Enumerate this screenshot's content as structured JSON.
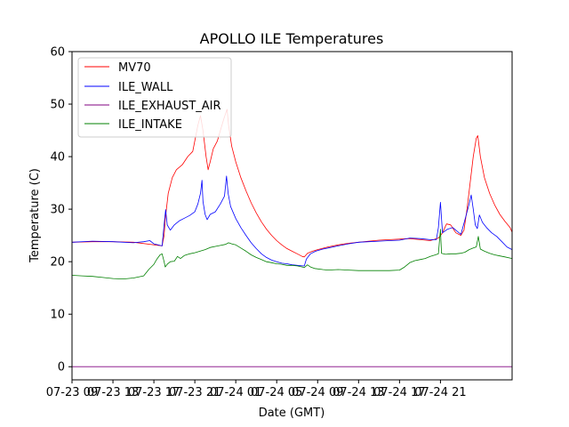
{
  "chart_data": {
    "type": "line",
    "title": "APOLLO ILE Temperatures",
    "xlabel": "Date (GMT)",
    "ylabel": "Temperature (C)",
    "xlim": [
      0,
      43
    ],
    "ylim": [
      -2.5,
      60
    ],
    "x_unit": "hours since 07-23 09:00 GMT (approx.)",
    "x_ticks": [
      {
        "x": 0,
        "label": "07-23 09"
      },
      {
        "x": 4,
        "label": "07-23 13"
      },
      {
        "x": 8,
        "label": "07-23 17"
      },
      {
        "x": 12,
        "label": "07-23 21"
      },
      {
        "x": 16,
        "label": "07-24 01"
      },
      {
        "x": 20,
        "label": "07-24 05"
      },
      {
        "x": 24,
        "label": "07-24 09"
      },
      {
        "x": 28,
        "label": "07-24 13"
      },
      {
        "x": 32,
        "label": "07-24 17"
      },
      {
        "x": 36,
        "label": "07-24 21"
      }
    ],
    "y_ticks": [
      0,
      10,
      20,
      30,
      40,
      50,
      60
    ],
    "legend_position": "top-left",
    "series": [
      {
        "name": "MV70",
        "color": "#ff0000",
        "points": [
          [
            0,
            23.7
          ],
          [
            2,
            23.8
          ],
          [
            4,
            23.8
          ],
          [
            6,
            23.7
          ],
          [
            8.8,
            23.0
          ],
          [
            9,
            25.0
          ],
          [
            9.1,
            28.0
          ],
          [
            9.4,
            33.0
          ],
          [
            9.8,
            36.0
          ],
          [
            10.2,
            37.5
          ],
          [
            10.8,
            38.5
          ],
          [
            11.3,
            40.0
          ],
          [
            11.8,
            41.0
          ],
          [
            12.0,
            43.0
          ],
          [
            12.3,
            46.0
          ],
          [
            12.55,
            47.8
          ],
          [
            12.8,
            45.0
          ],
          [
            13.1,
            40.0
          ],
          [
            13.3,
            37.5
          ],
          [
            13.5,
            39.0
          ],
          [
            13.8,
            41.5
          ],
          [
            14.2,
            43.0
          ],
          [
            14.5,
            45.0
          ],
          [
            14.8,
            47.0
          ],
          [
            15.05,
            48.5
          ],
          [
            15.15,
            49.0
          ],
          [
            15.3,
            46.0
          ],
          [
            15.6,
            42.0
          ],
          [
            16.0,
            39.0
          ],
          [
            16.5,
            36.0
          ],
          [
            17.0,
            33.5
          ],
          [
            17.5,
            31.2
          ],
          [
            18.0,
            29.3
          ],
          [
            18.5,
            27.6
          ],
          [
            19.0,
            26.2
          ],
          [
            19.5,
            25.0
          ],
          [
            20.0,
            24.0
          ],
          [
            20.5,
            23.2
          ],
          [
            21.0,
            22.5
          ],
          [
            21.5,
            22.0
          ],
          [
            22.0,
            21.5
          ],
          [
            22.5,
            21.0
          ],
          [
            22.7,
            20.9
          ],
          [
            23.0,
            21.6
          ],
          [
            23.5,
            22.0
          ],
          [
            24.0,
            22.3
          ],
          [
            25.0,
            22.8
          ],
          [
            26.0,
            23.2
          ],
          [
            27.0,
            23.5
          ],
          [
            28.0,
            23.7
          ],
          [
            29.0,
            23.9
          ],
          [
            30.0,
            24.1
          ],
          [
            31.0,
            24.2
          ],
          [
            32.0,
            24.3
          ],
          [
            33.0,
            24.4
          ],
          [
            34.0,
            24.2
          ],
          [
            35.0,
            24.0
          ],
          [
            35.8,
            24.5
          ],
          [
            36.2,
            25.5
          ],
          [
            36.6,
            27.2
          ],
          [
            37.0,
            27.0
          ],
          [
            37.5,
            25.5
          ],
          [
            38.0,
            25.0
          ],
          [
            38.3,
            26.0
          ],
          [
            38.6,
            30.0
          ],
          [
            38.9,
            35.0
          ],
          [
            39.2,
            40.0
          ],
          [
            39.5,
            43.5
          ],
          [
            39.65,
            44.0
          ],
          [
            39.9,
            40.0
          ],
          [
            40.3,
            36.0
          ],
          [
            40.8,
            33.0
          ],
          [
            41.3,
            30.8
          ],
          [
            41.8,
            29.0
          ],
          [
            42.3,
            27.7
          ],
          [
            42.8,
            26.5
          ],
          [
            43.0,
            25.6
          ]
        ]
      },
      {
        "name": "ILE_WALL",
        "color": "#0000ff",
        "points": [
          [
            0,
            23.7
          ],
          [
            2,
            23.9
          ],
          [
            4,
            23.8
          ],
          [
            6,
            23.6
          ],
          [
            7,
            23.8
          ],
          [
            7.6,
            24.0
          ],
          [
            8,
            23.4
          ],
          [
            8.8,
            23.0
          ],
          [
            9.0,
            27.0
          ],
          [
            9.15,
            29.9
          ],
          [
            9.3,
            27.0
          ],
          [
            9.6,
            26.0
          ],
          [
            10.0,
            27.0
          ],
          [
            10.5,
            27.8
          ],
          [
            11.0,
            28.3
          ],
          [
            11.5,
            28.8
          ],
          [
            12.0,
            29.5
          ],
          [
            12.3,
            31.0
          ],
          [
            12.55,
            33.0
          ],
          [
            12.7,
            35.5
          ],
          [
            12.8,
            31.5
          ],
          [
            13.0,
            29.0
          ],
          [
            13.2,
            28.0
          ],
          [
            13.5,
            29.0
          ],
          [
            14.0,
            29.5
          ],
          [
            14.5,
            31.0
          ],
          [
            14.9,
            32.5
          ],
          [
            15.1,
            36.3
          ],
          [
            15.25,
            33.0
          ],
          [
            15.5,
            30.5
          ],
          [
            16.0,
            28.2
          ],
          [
            16.5,
            26.5
          ],
          [
            17.0,
            25.0
          ],
          [
            17.5,
            23.6
          ],
          [
            18.0,
            22.5
          ],
          [
            18.5,
            21.5
          ],
          [
            19.0,
            20.8
          ],
          [
            19.5,
            20.3
          ],
          [
            20.0,
            20.0
          ],
          [
            20.5,
            19.7
          ],
          [
            21.0,
            19.6
          ],
          [
            21.5,
            19.4
          ],
          [
            22.0,
            19.3
          ],
          [
            22.5,
            19.2
          ],
          [
            22.7,
            19.2
          ],
          [
            22.9,
            20.5
          ],
          [
            23.3,
            21.5
          ],
          [
            23.8,
            22.0
          ],
          [
            24.5,
            22.4
          ],
          [
            25.0,
            22.6
          ],
          [
            26.0,
            23.0
          ],
          [
            27.0,
            23.4
          ],
          [
            28.0,
            23.7
          ],
          [
            29.0,
            23.8
          ],
          [
            30.0,
            23.9
          ],
          [
            31.0,
            24.0
          ],
          [
            32.0,
            24.1
          ],
          [
            33.0,
            24.5
          ],
          [
            34.0,
            24.4
          ],
          [
            35.0,
            24.2
          ],
          [
            35.6,
            24.2
          ],
          [
            35.8,
            26.5
          ],
          [
            36.0,
            31.3
          ],
          [
            36.2,
            25.5
          ],
          [
            36.7,
            26.2
          ],
          [
            37.2,
            26.5
          ],
          [
            37.5,
            26.0
          ],
          [
            38.0,
            25.2
          ],
          [
            38.4,
            28.0
          ],
          [
            38.8,
            31.0
          ],
          [
            39.0,
            32.7
          ],
          [
            39.2,
            30.0
          ],
          [
            39.4,
            27.0
          ],
          [
            39.6,
            26.3
          ],
          [
            39.8,
            28.9
          ],
          [
            40.1,
            27.5
          ],
          [
            40.5,
            26.5
          ],
          [
            41.0,
            25.5
          ],
          [
            41.5,
            24.8
          ],
          [
            42.0,
            23.8
          ],
          [
            42.5,
            22.8
          ],
          [
            43.0,
            22.3
          ]
        ]
      },
      {
        "name": "ILE_EXHAUST_AIR",
        "color": "#800080",
        "points": [
          [
            0,
            0.0
          ],
          [
            43,
            0.0
          ]
        ]
      },
      {
        "name": "ILE_INTAKE",
        "color": "#008000",
        "points": [
          [
            0,
            17.4
          ],
          [
            1,
            17.3
          ],
          [
            2,
            17.2
          ],
          [
            3,
            17.0
          ],
          [
            4,
            16.8
          ],
          [
            5,
            16.7
          ],
          [
            6,
            16.9
          ],
          [
            7,
            17.3
          ],
          [
            7.5,
            18.5
          ],
          [
            8.0,
            19.5
          ],
          [
            8.3,
            20.5
          ],
          [
            8.6,
            21.3
          ],
          [
            8.8,
            21.5
          ],
          [
            9.0,
            20.0
          ],
          [
            9.1,
            19.0
          ],
          [
            9.3,
            19.5
          ],
          [
            9.6,
            20.0
          ],
          [
            10.0,
            20.1
          ],
          [
            10.3,
            21.0
          ],
          [
            10.6,
            20.6
          ],
          [
            11.0,
            21.2
          ],
          [
            11.5,
            21.5
          ],
          [
            12.0,
            21.7
          ],
          [
            12.5,
            22.0
          ],
          [
            13.0,
            22.3
          ],
          [
            13.5,
            22.7
          ],
          [
            14.0,
            22.9
          ],
          [
            14.5,
            23.1
          ],
          [
            15.0,
            23.3
          ],
          [
            15.3,
            23.6
          ],
          [
            15.6,
            23.4
          ],
          [
            16.0,
            23.2
          ],
          [
            16.5,
            22.6
          ],
          [
            17.0,
            22.0
          ],
          [
            17.5,
            21.3
          ],
          [
            18.0,
            20.8
          ],
          [
            18.5,
            20.4
          ],
          [
            19.0,
            20.0
          ],
          [
            19.5,
            19.8
          ],
          [
            20.0,
            19.6
          ],
          [
            20.5,
            19.5
          ],
          [
            21.0,
            19.3
          ],
          [
            21.5,
            19.3
          ],
          [
            22.0,
            19.2
          ],
          [
            22.5,
            19.0
          ],
          [
            22.7,
            18.9
          ],
          [
            23.0,
            19.4
          ],
          [
            23.3,
            19.0
          ],
          [
            23.7,
            18.7
          ],
          [
            24.5,
            18.5
          ],
          [
            25.0,
            18.4
          ],
          [
            26.0,
            18.5
          ],
          [
            27.0,
            18.4
          ],
          [
            28.0,
            18.3
          ],
          [
            29.0,
            18.3
          ],
          [
            30.0,
            18.3
          ],
          [
            31.0,
            18.3
          ],
          [
            32.0,
            18.4
          ],
          [
            32.5,
            19.0
          ],
          [
            33.0,
            19.8
          ],
          [
            33.5,
            20.2
          ],
          [
            34.0,
            20.4
          ],
          [
            34.5,
            20.6
          ],
          [
            35.0,
            21.0
          ],
          [
            35.5,
            21.3
          ],
          [
            35.8,
            21.5
          ],
          [
            36.0,
            26.2
          ],
          [
            36.1,
            21.6
          ],
          [
            36.5,
            21.4
          ],
          [
            37.0,
            21.5
          ],
          [
            37.5,
            21.5
          ],
          [
            38.0,
            21.6
          ],
          [
            38.4,
            21.8
          ],
          [
            38.8,
            22.3
          ],
          [
            39.2,
            22.6
          ],
          [
            39.5,
            22.8
          ],
          [
            39.7,
            24.8
          ],
          [
            39.9,
            22.4
          ],
          [
            40.3,
            22.0
          ],
          [
            40.8,
            21.6
          ],
          [
            41.3,
            21.3
          ],
          [
            41.8,
            21.1
          ],
          [
            42.3,
            20.9
          ],
          [
            43.0,
            20.6
          ]
        ]
      }
    ]
  }
}
